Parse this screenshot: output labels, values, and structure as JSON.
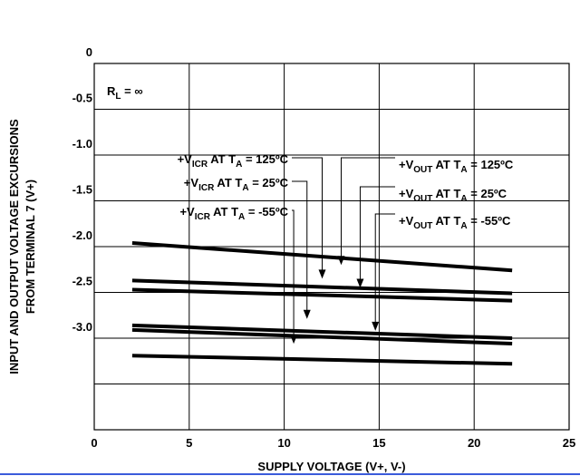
{
  "chart_data": {
    "type": "line",
    "title": "",
    "xlabel": "SUPPLY VOLTAGE (V+, V-)",
    "ylabel_lines": [
      "INPUT AND OUTPUT VOLTAGE EXCURSIONS",
      "FROM TERMINAL 7 (V+)"
    ],
    "xlim": [
      0,
      25
    ],
    "ylim": [
      0,
      -4
    ],
    "x_ticks": [
      0,
      5,
      10,
      15,
      20,
      25
    ],
    "x_tick_labels": [
      "0",
      "5",
      "10",
      "15",
      "20",
      "25"
    ],
    "y_ticks": [
      0,
      -0.5,
      -1.0,
      -1.5,
      -2.0,
      -2.5,
      -3.0
    ],
    "y_tick_labels": [
      "0",
      "-0.5",
      "-1.0",
      "-1.5",
      "-2.0",
      "-2.5",
      "-3.0"
    ],
    "grid": true,
    "condition_label": {
      "main": "R",
      "sub": "L",
      "rest": " = ∞"
    },
    "series": [
      {
        "x": [
          2,
          22
        ],
        "y": [
          -1.96,
          -2.26
        ]
      },
      {
        "x": [
          2,
          22
        ],
        "y": [
          -2.37,
          -2.51
        ]
      },
      {
        "x": [
          2,
          22
        ],
        "y": [
          -2.47,
          -2.59
        ]
      },
      {
        "x": [
          2,
          22
        ],
        "y": [
          -2.86,
          -3.0
        ]
      },
      {
        "x": [
          2,
          22
        ],
        "y": [
          -2.91,
          -3.06
        ]
      },
      {
        "x": [
          2,
          22
        ],
        "y": [
          -3.19,
          -3.28
        ]
      }
    ],
    "annotations": [
      {
        "prefix": "+V",
        "sub1": "ICR",
        "mid": " AT T",
        "sub2": "A",
        "tail": " = 125ºC",
        "side": "left",
        "x": 12.0,
        "y": -2.36
      },
      {
        "prefix": "+V",
        "sub1": "ICR",
        "mid": " AT T",
        "sub2": "A",
        "tail": " = 25ºC",
        "side": "left",
        "x": 11.2,
        "y": -2.8
      },
      {
        "prefix": "+V",
        "sub1": "ICR",
        "mid": " AT T",
        "sub2": "A",
        "tail": " = -55ºC",
        "side": "left",
        "x": 10.5,
        "y": -3.07
      },
      {
        "prefix": "+V",
        "sub1": "OUT",
        "mid": " AT T",
        "sub2": "A",
        "tail": " = 125ºC",
        "side": "right",
        "x": 13.0,
        "y": -2.21
      },
      {
        "prefix": "+V",
        "sub1": "OUT",
        "mid": " AT T",
        "sub2": "A",
        "tail": " = 25ºC",
        "side": "right",
        "x": 14.0,
        "y": -2.46
      },
      {
        "prefix": "+V",
        "sub1": "OUT",
        "mid": " AT T",
        "sub2": "A",
        "tail": " = -55ºC",
        "side": "right",
        "x": 14.8,
        "y": -2.93
      }
    ]
  }
}
